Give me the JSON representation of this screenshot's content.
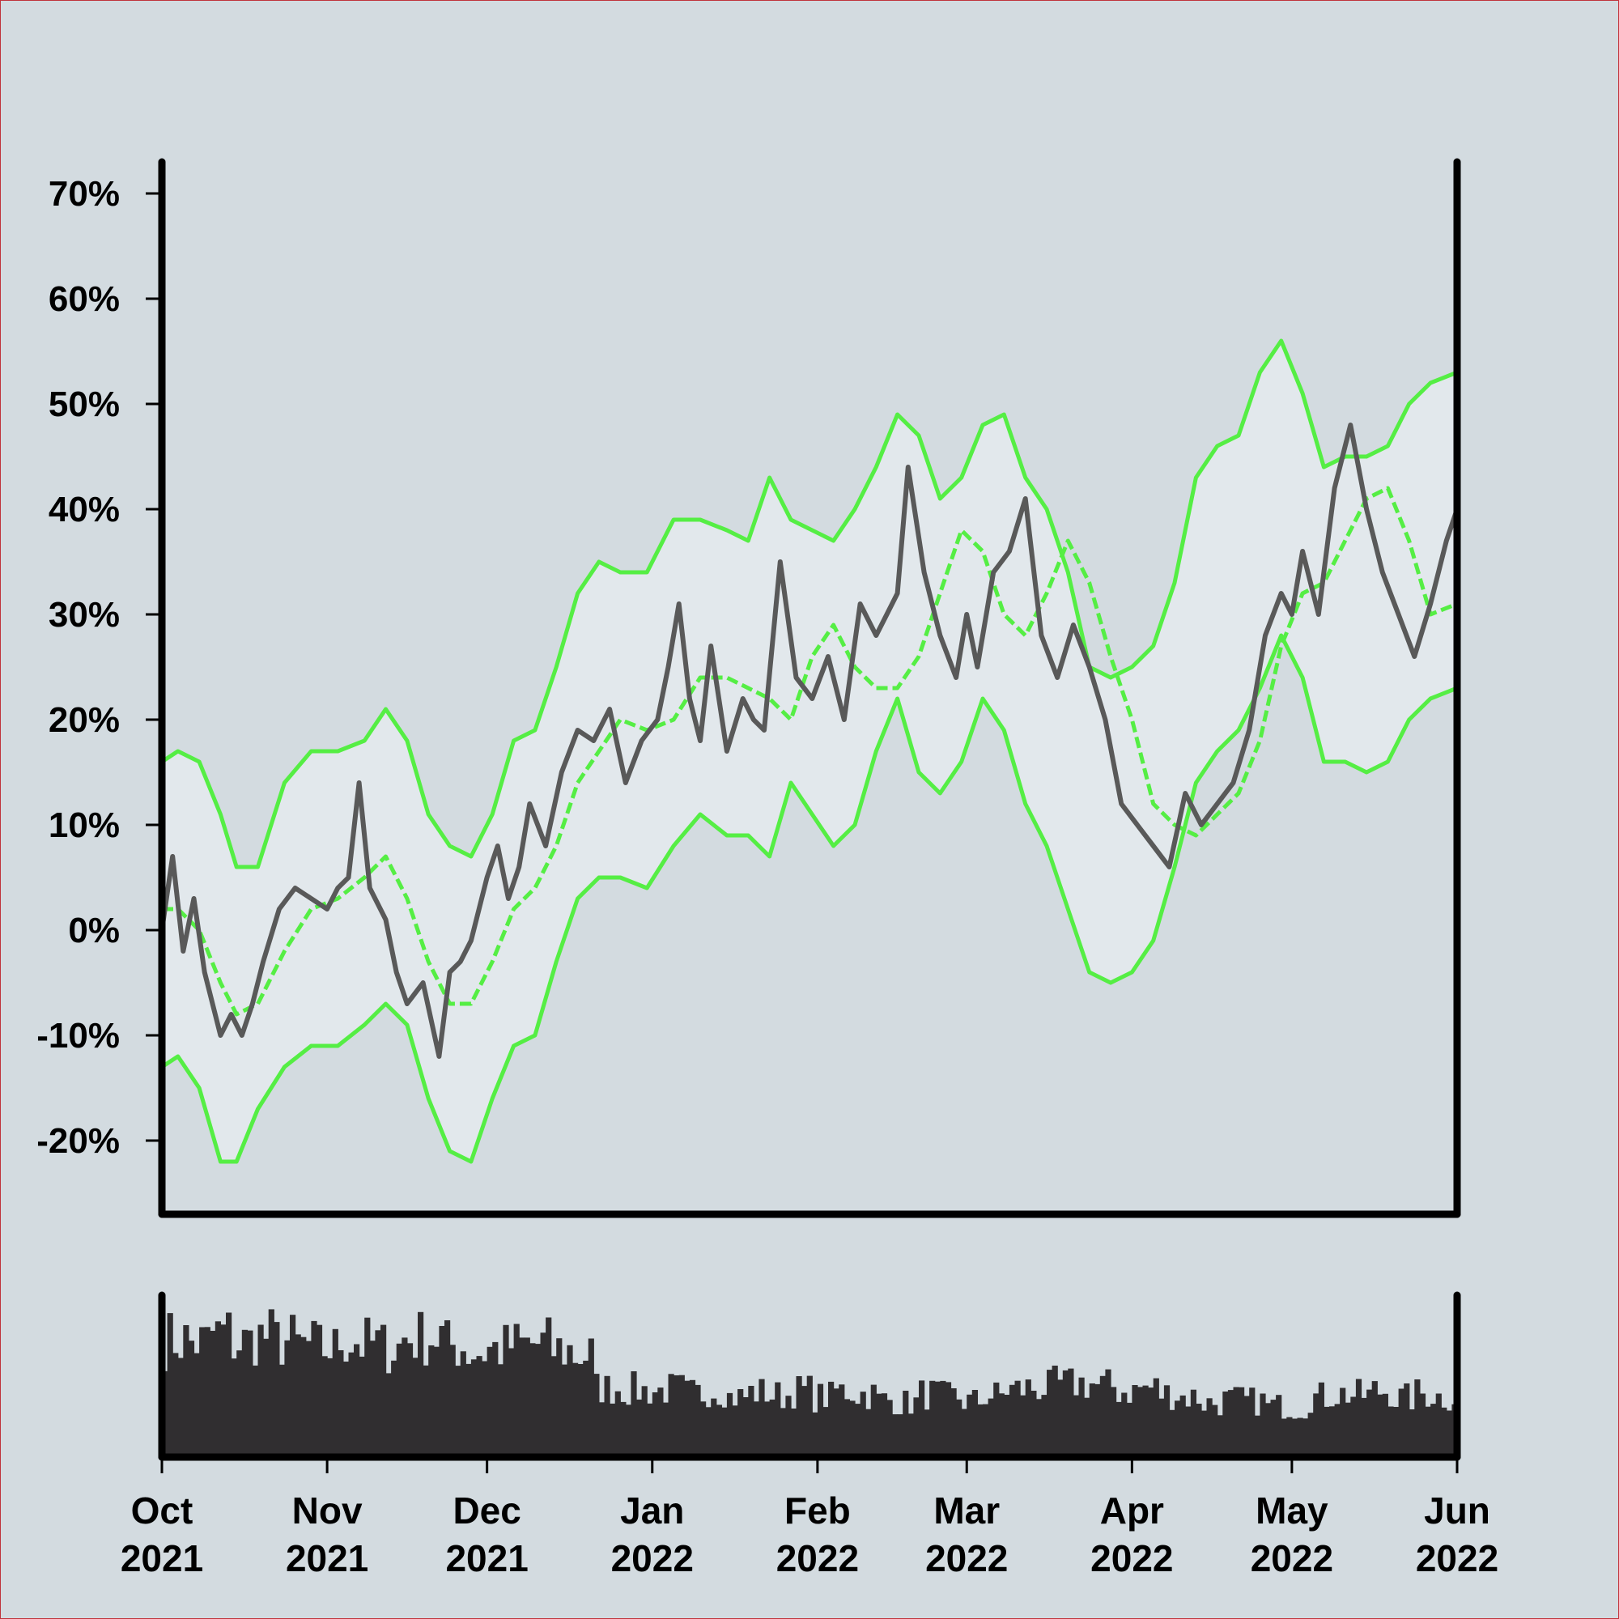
{
  "chart_data": [
    {
      "type": "line",
      "panel": "main",
      "title": "",
      "xlabel": "",
      "ylabel": "",
      "x_range": [
        "2021-10-01",
        "2022-06-01"
      ],
      "ylim": [
        -27,
        73
      ],
      "y_ticks": [
        -20,
        -10,
        0,
        10,
        20,
        30,
        40,
        50,
        60,
        70
      ],
      "y_tick_labels": [
        "-20%",
        "-10%",
        "0%",
        "10%",
        "20%",
        "30%",
        "40%",
        "50%",
        "60%",
        "70%"
      ],
      "x_ticks": [
        "2021-10-01",
        "2021-11-01",
        "2021-12-01",
        "2022-01-01",
        "2022-02-01",
        "2022-03-01",
        "2022-04-01",
        "2022-05-01",
        "2022-06-01"
      ],
      "x_tick_labels": [
        [
          "Oct",
          "2021"
        ],
        [
          "Nov",
          "2021"
        ],
        [
          "Dec",
          "2021"
        ],
        [
          "Jan",
          "2022"
        ],
        [
          "Feb",
          "2022"
        ],
        [
          "Mar",
          "2022"
        ],
        [
          "Apr",
          "2022"
        ],
        [
          "May",
          "2022"
        ],
        [
          "Jun",
          "2022"
        ]
      ],
      "grid": false,
      "legend": "none",
      "colors": {
        "price": "#595959",
        "band": "#55ee44",
        "band_fill": "#e2e8ec",
        "axis": "#000000"
      },
      "series": [
        {
          "role": "price",
          "style": "solid",
          "x": [
            "2021-10-01",
            "2021-10-03",
            "2021-10-05",
            "2021-10-07",
            "2021-10-09",
            "2021-10-12",
            "2021-10-14",
            "2021-10-16",
            "2021-10-18",
            "2021-10-20",
            "2021-10-23",
            "2021-10-26",
            "2021-10-29",
            "2021-11-01",
            "2021-11-03",
            "2021-11-05",
            "2021-11-07",
            "2021-11-09",
            "2021-11-12",
            "2021-11-14",
            "2021-11-16",
            "2021-11-19",
            "2021-11-22",
            "2021-11-24",
            "2021-11-26",
            "2021-11-28",
            "2021-12-01",
            "2021-12-03",
            "2021-12-05",
            "2021-12-07",
            "2021-12-09",
            "2021-12-12",
            "2021-12-15",
            "2021-12-18",
            "2021-12-21",
            "2021-12-24",
            "2021-12-27",
            "2021-12-30",
            "2022-01-02",
            "2022-01-04",
            "2022-01-06",
            "2022-01-08",
            "2022-01-10",
            "2022-01-12",
            "2022-01-15",
            "2022-01-18",
            "2022-01-20",
            "2022-01-22",
            "2022-01-25",
            "2022-01-28",
            "2022-01-31",
            "2022-02-03",
            "2022-02-06",
            "2022-02-09",
            "2022-02-12",
            "2022-02-14",
            "2022-02-16",
            "2022-02-18",
            "2022-02-21",
            "2022-02-24",
            "2022-02-27",
            "2022-03-01",
            "2022-03-03",
            "2022-03-06",
            "2022-03-09",
            "2022-03-12",
            "2022-03-15",
            "2022-03-18",
            "2022-03-21",
            "2022-03-24",
            "2022-03-27",
            "2022-03-30",
            "2022-04-02",
            "2022-04-05",
            "2022-04-08",
            "2022-04-11",
            "2022-04-14",
            "2022-04-17",
            "2022-04-20",
            "2022-04-23",
            "2022-04-26",
            "2022-04-29",
            "2022-05-01",
            "2022-05-03",
            "2022-05-06",
            "2022-05-09",
            "2022-05-12",
            "2022-05-15",
            "2022-05-18",
            "2022-05-21",
            "2022-05-24",
            "2022-05-27",
            "2022-05-30",
            "2022-06-01"
          ],
          "y": [
            0,
            7,
            -2,
            3,
            -4,
            -10,
            -8,
            -10,
            -7,
            -3,
            2,
            4,
            3,
            2,
            4,
            5,
            14,
            4,
            1,
            -4,
            -7,
            -5,
            -12,
            -4,
            -3,
            -1,
            5,
            8,
            3,
            6,
            12,
            8,
            15,
            19,
            18,
            21,
            14,
            18,
            20,
            25,
            31,
            22,
            18,
            27,
            17,
            22,
            20,
            19,
            35,
            24,
            22,
            26,
            20,
            31,
            28,
            30,
            32,
            44,
            34,
            28,
            24,
            30,
            25,
            34,
            36,
            41,
            28,
            24,
            29,
            25,
            20,
            12,
            10,
            8,
            6,
            13,
            10,
            12,
            14,
            19,
            28,
            32,
            30,
            36,
            30,
            42,
            48,
            40,
            34,
            30,
            26,
            31,
            37,
            40
          ]
        },
        {
          "role": "middle-band",
          "style": "dashed",
          "x": [
            "2021-10-01",
            "2021-10-04",
            "2021-10-08",
            "2021-10-12",
            "2021-10-15",
            "2021-10-19",
            "2021-10-24",
            "2021-10-29",
            "2021-11-03",
            "2021-11-08",
            "2021-11-12",
            "2021-11-16",
            "2021-11-20",
            "2021-11-24",
            "2021-11-28",
            "2021-12-02",
            "2021-12-06",
            "2021-12-10",
            "2021-12-14",
            "2021-12-18",
            "2021-12-22",
            "2021-12-26",
            "2021-12-31",
            "2022-01-05",
            "2022-01-10",
            "2022-01-15",
            "2022-01-19",
            "2022-01-23",
            "2022-01-27",
            "2022-01-31",
            "2022-02-04",
            "2022-02-08",
            "2022-02-12",
            "2022-02-16",
            "2022-02-20",
            "2022-02-24",
            "2022-02-28",
            "2022-03-04",
            "2022-03-08",
            "2022-03-12",
            "2022-03-16",
            "2022-03-20",
            "2022-03-24",
            "2022-03-28",
            "2022-04-01",
            "2022-04-05",
            "2022-04-09",
            "2022-04-13",
            "2022-04-17",
            "2022-04-21",
            "2022-04-25",
            "2022-04-29",
            "2022-05-03",
            "2022-05-07",
            "2022-05-11",
            "2022-05-15",
            "2022-05-19",
            "2022-05-23",
            "2022-05-27",
            "2022-06-01"
          ],
          "y": [
            2,
            2,
            0,
            -5,
            -8,
            -7,
            -2,
            2,
            3,
            5,
            7,
            3,
            -3,
            -7,
            -7,
            -3,
            2,
            4,
            8,
            14,
            17,
            20,
            19,
            20,
            24,
            24,
            23,
            22,
            20,
            26,
            29,
            25,
            23,
            23,
            26,
            32,
            38,
            36,
            30,
            28,
            32,
            37,
            33,
            26,
            20,
            12,
            10,
            9,
            11,
            13,
            18,
            27,
            32,
            33,
            37,
            41,
            42,
            37,
            30,
            31
          ]
        },
        {
          "role": "upper-band",
          "style": "solid",
          "x": [
            "2021-10-01",
            "2021-10-04",
            "2021-10-08",
            "2021-10-12",
            "2021-10-15",
            "2021-10-19",
            "2021-10-24",
            "2021-10-29",
            "2021-11-03",
            "2021-11-08",
            "2021-11-12",
            "2021-11-16",
            "2021-11-20",
            "2021-11-24",
            "2021-11-28",
            "2021-12-02",
            "2021-12-06",
            "2021-12-10",
            "2021-12-14",
            "2021-12-18",
            "2021-12-22",
            "2021-12-26",
            "2021-12-31",
            "2022-01-05",
            "2022-01-10",
            "2022-01-15",
            "2022-01-19",
            "2022-01-23",
            "2022-01-27",
            "2022-01-31",
            "2022-02-04",
            "2022-02-08",
            "2022-02-12",
            "2022-02-16",
            "2022-02-20",
            "2022-02-24",
            "2022-02-28",
            "2022-03-04",
            "2022-03-08",
            "2022-03-12",
            "2022-03-16",
            "2022-03-20",
            "2022-03-24",
            "2022-03-28",
            "2022-04-01",
            "2022-04-05",
            "2022-04-09",
            "2022-04-13",
            "2022-04-17",
            "2022-04-21",
            "2022-04-25",
            "2022-04-29",
            "2022-05-03",
            "2022-05-07",
            "2022-05-11",
            "2022-05-15",
            "2022-05-19",
            "2022-05-23",
            "2022-05-27",
            "2022-06-01"
          ],
          "y": [
            16,
            17,
            16,
            11,
            6,
            6,
            14,
            17,
            17,
            18,
            21,
            18,
            11,
            8,
            7,
            11,
            18,
            19,
            25,
            32,
            35,
            34,
            34,
            39,
            39,
            38,
            37,
            43,
            39,
            38,
            37,
            40,
            44,
            49,
            47,
            41,
            43,
            48,
            49,
            43,
            40,
            34,
            25,
            24,
            25,
            27,
            33,
            43,
            46,
            47,
            53,
            56,
            51,
            44,
            45,
            45,
            46,
            50,
            52,
            53
          ]
        },
        {
          "role": "lower-band",
          "style": "solid",
          "x": [
            "2021-10-01",
            "2021-10-04",
            "2021-10-08",
            "2021-10-12",
            "2021-10-15",
            "2021-10-19",
            "2021-10-24",
            "2021-10-29",
            "2021-11-03",
            "2021-11-08",
            "2021-11-12",
            "2021-11-16",
            "2021-11-20",
            "2021-11-24",
            "2021-11-28",
            "2021-12-02",
            "2021-12-06",
            "2021-12-10",
            "2021-12-14",
            "2021-12-18",
            "2021-12-22",
            "2021-12-26",
            "2021-12-31",
            "2022-01-05",
            "2022-01-10",
            "2022-01-15",
            "2022-01-19",
            "2022-01-23",
            "2022-01-27",
            "2022-01-31",
            "2022-02-04",
            "2022-02-08",
            "2022-02-12",
            "2022-02-16",
            "2022-02-20",
            "2022-02-24",
            "2022-02-28",
            "2022-03-04",
            "2022-03-08",
            "2022-03-12",
            "2022-03-16",
            "2022-03-20",
            "2022-03-24",
            "2022-03-28",
            "2022-04-01",
            "2022-04-05",
            "2022-04-09",
            "2022-04-13",
            "2022-04-17",
            "2022-04-21",
            "2022-04-25",
            "2022-04-29",
            "2022-05-03",
            "2022-05-07",
            "2022-05-11",
            "2022-05-15",
            "2022-05-19",
            "2022-05-23",
            "2022-05-27",
            "2022-06-01"
          ],
          "y": [
            -13,
            -12,
            -15,
            -22,
            -22,
            -17,
            -13,
            -11,
            -11,
            -9,
            -7,
            -9,
            -16,
            -21,
            -22,
            -16,
            -11,
            -10,
            -3,
            3,
            5,
            5,
            4,
            8,
            11,
            9,
            9,
            7,
            14,
            11,
            8,
            10,
            17,
            22,
            15,
            13,
            16,
            22,
            19,
            12,
            8,
            2,
            -4,
            -5,
            -4,
            -1,
            6,
            14,
            17,
            19,
            23,
            28,
            24,
            16,
            16,
            15,
            16,
            20,
            22,
            23
          ]
        }
      ]
    },
    {
      "type": "bar",
      "panel": "volume",
      "title": "",
      "xlabel": "",
      "ylabel": "",
      "x_range": [
        "2021-10-01",
        "2022-06-01"
      ],
      "ylim": [
        0,
        1
      ],
      "y_axis_labels": "none",
      "colors": {
        "bars": "#302e30"
      },
      "weekly_levels": [
        0.78,
        0.76,
        0.82,
        0.76,
        0.8,
        0.77,
        0.74,
        0.72,
        0.78,
        0.75,
        0.73,
        0.79,
        0.8,
        0.74,
        0.7,
        0.72,
        0.74,
        0.75,
        0.71,
        0.68,
        0.46,
        0.45,
        0.44,
        0.45,
        0.42,
        0.45,
        0.4,
        0.43,
        0.41,
        0.44,
        0.4,
        0.44,
        0.42,
        0.38,
        0.36,
        0.42,
        0.4,
        0.37,
        0.41,
        0.45,
        0.46,
        0.48,
        0.49,
        0.47,
        0.44,
        0.46,
        0.42,
        0.4,
        0.36,
        0.38,
        0.37,
        0.34,
        0.33,
        0.4,
        0.42,
        0.41,
        0.44,
        0.39,
        0.42,
        0.4
      ]
    }
  ]
}
